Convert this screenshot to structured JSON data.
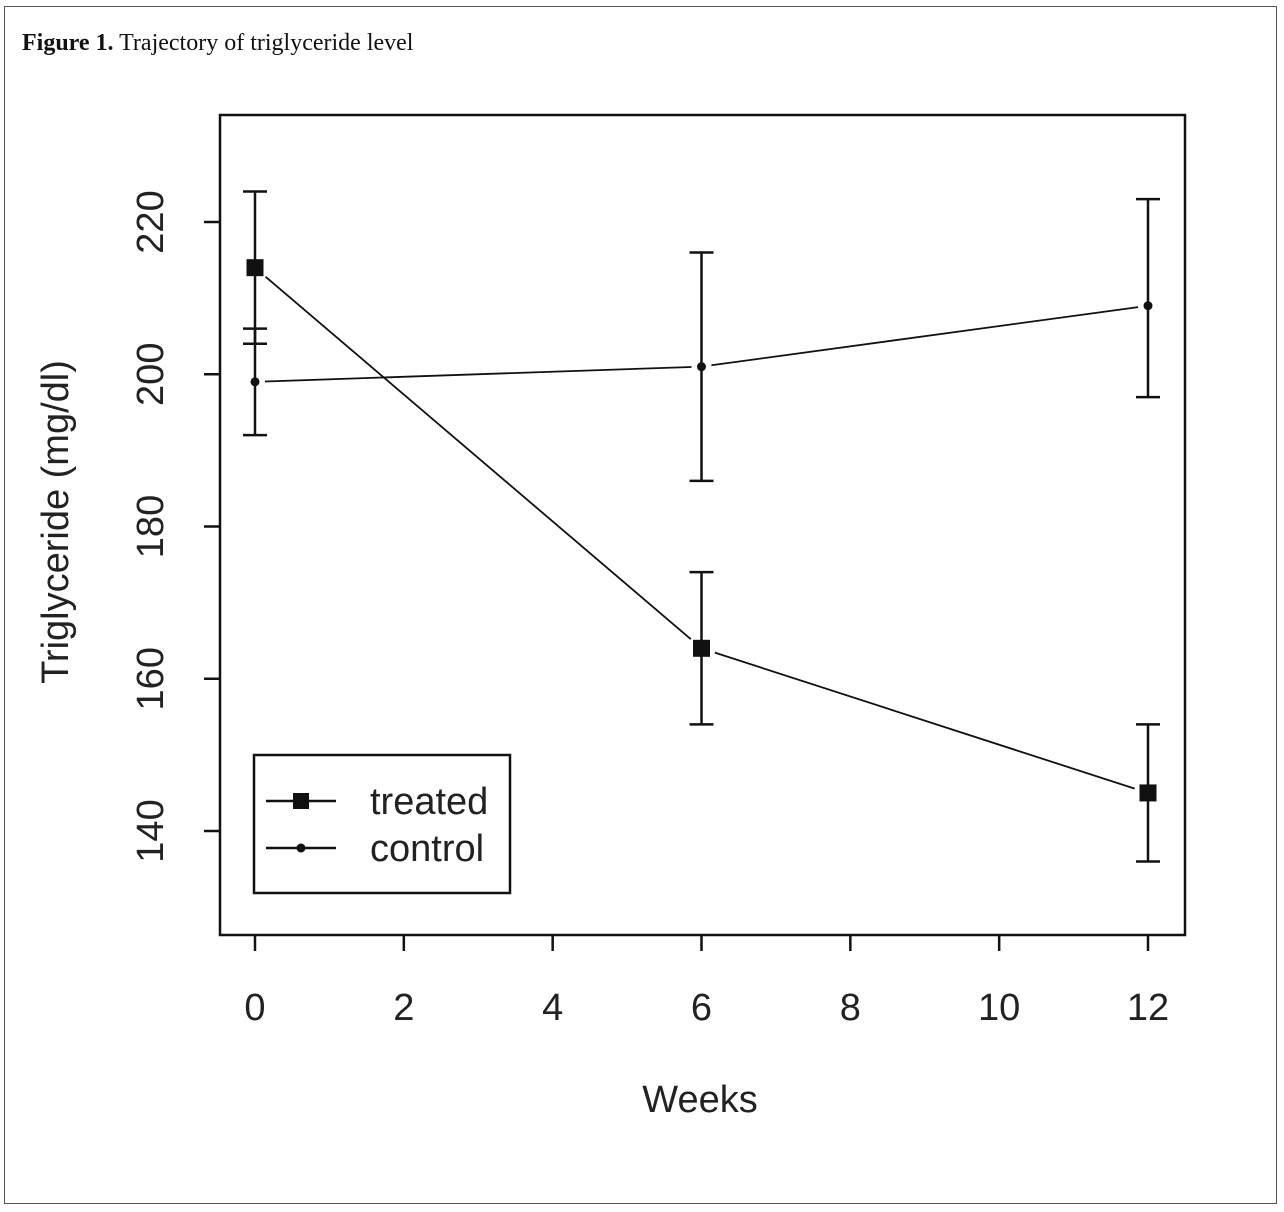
{
  "caption": {
    "label": "Figure 1.",
    "text": " Trajectory of triglyceride level"
  },
  "chart_data": {
    "type": "line",
    "xlabel": "Weeks",
    "ylabel": "Triglyceride (mg/dl)",
    "xlim": [
      0,
      12
    ],
    "ylim": [
      126,
      234
    ],
    "xticks": [
      0,
      2,
      4,
      6,
      8,
      10,
      12
    ],
    "yticks": [
      140,
      160,
      180,
      200,
      220
    ],
    "grid": false,
    "legend_position": "bottom-left",
    "series": [
      {
        "name": "treated",
        "marker": "square",
        "x": [
          0,
          6,
          12
        ],
        "y": [
          214,
          164,
          145
        ],
        "err_low": [
          204,
          154,
          136
        ],
        "err_high": [
          224,
          174,
          154
        ]
      },
      {
        "name": "control",
        "marker": "dot",
        "x": [
          0,
          6,
          12
        ],
        "y": [
          199,
          201,
          209
        ],
        "err_low": [
          192,
          186,
          197
        ],
        "err_high": [
          206,
          216,
          223
        ]
      }
    ]
  }
}
